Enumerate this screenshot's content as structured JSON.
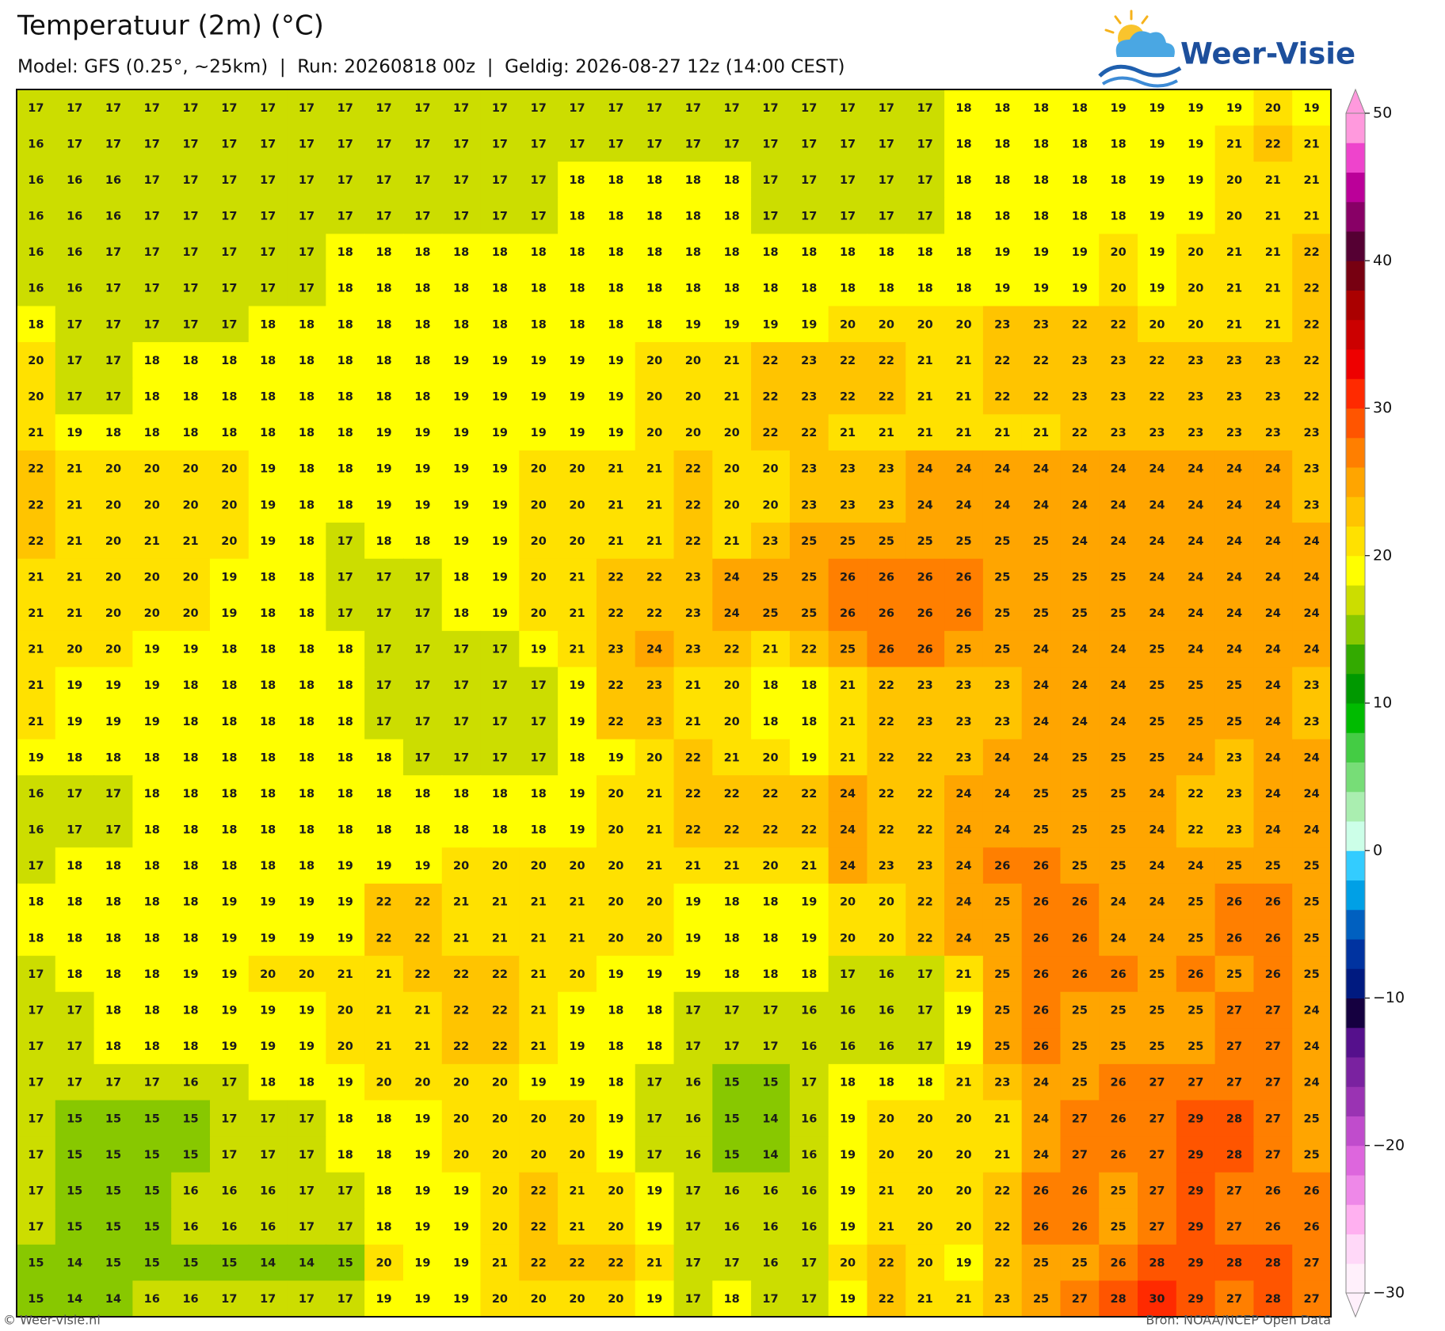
{
  "header": {
    "title": "Temperatuur (2m) (°C)",
    "subtitle": "Model: GFS (0.25°, ~25km)  |  Run: 20260818 00z  |  Geldig: 2026-08-27 12z (14:00 CEST)"
  },
  "logo": {
    "text": "Weer-Visie"
  },
  "grid": {
    "rows": [
      [
        17,
        17,
        17,
        17,
        17,
        17,
        17,
        17,
        17,
        17,
        17,
        17,
        17,
        17,
        17,
        17,
        17,
        17,
        17,
        17,
        17,
        17,
        17,
        17,
        18,
        18,
        18,
        18,
        19,
        19,
        19,
        19,
        20,
        19
      ],
      [
        16,
        17,
        17,
        17,
        17,
        17,
        17,
        17,
        17,
        17,
        17,
        17,
        17,
        17,
        17,
        17,
        17,
        17,
        17,
        17,
        17,
        17,
        17,
        17,
        18,
        18,
        18,
        18,
        18,
        19,
        19,
        21,
        22,
        21
      ],
      [
        16,
        16,
        16,
        17,
        17,
        17,
        17,
        17,
        17,
        17,
        17,
        17,
        17,
        17,
        18,
        18,
        18,
        18,
        18,
        17,
        17,
        17,
        17,
        17,
        18,
        18,
        18,
        18,
        18,
        19,
        19,
        20,
        21,
        21
      ],
      [
        16,
        16,
        16,
        17,
        17,
        17,
        17,
        17,
        17,
        17,
        17,
        17,
        17,
        17,
        18,
        18,
        18,
        18,
        18,
        17,
        17,
        17,
        17,
        17,
        18,
        18,
        18,
        18,
        18,
        19,
        19,
        20,
        21,
        21
      ],
      [
        16,
        16,
        17,
        17,
        17,
        17,
        17,
        17,
        18,
        18,
        18,
        18,
        18,
        18,
        18,
        18,
        18,
        18,
        18,
        18,
        18,
        18,
        18,
        18,
        18,
        19,
        19,
        19,
        20,
        19,
        20,
        21,
        21,
        22
      ],
      [
        16,
        16,
        17,
        17,
        17,
        17,
        17,
        17,
        18,
        18,
        18,
        18,
        18,
        18,
        18,
        18,
        18,
        18,
        18,
        18,
        18,
        18,
        18,
        18,
        18,
        19,
        19,
        19,
        20,
        19,
        20,
        21,
        21,
        22
      ],
      [
        18,
        17,
        17,
        17,
        17,
        17,
        18,
        18,
        18,
        18,
        18,
        18,
        18,
        18,
        18,
        18,
        18,
        19,
        19,
        19,
        19,
        20,
        20,
        20,
        20,
        23,
        23,
        22,
        22,
        20,
        20,
        21,
        21,
        22
      ],
      [
        20,
        17,
        17,
        18,
        18,
        18,
        18,
        18,
        18,
        18,
        18,
        19,
        19,
        19,
        19,
        19,
        20,
        20,
        21,
        22,
        23,
        22,
        22,
        21,
        21,
        22,
        22,
        23,
        23,
        22,
        23,
        23,
        23,
        22
      ],
      [
        20,
        17,
        17,
        18,
        18,
        18,
        18,
        18,
        18,
        18,
        18,
        19,
        19,
        19,
        19,
        19,
        20,
        20,
        21,
        22,
        23,
        22,
        22,
        21,
        21,
        22,
        22,
        23,
        23,
        22,
        23,
        23,
        23,
        22
      ],
      [
        21,
        19,
        18,
        18,
        18,
        18,
        18,
        18,
        18,
        19,
        19,
        19,
        19,
        19,
        19,
        19,
        20,
        20,
        20,
        22,
        22,
        21,
        21,
        21,
        21,
        21,
        21,
        22,
        23,
        23,
        23,
        23,
        23,
        23
      ],
      [
        22,
        21,
        20,
        20,
        20,
        20,
        19,
        18,
        18,
        19,
        19,
        19,
        19,
        20,
        20,
        21,
        21,
        22,
        20,
        20,
        23,
        23,
        23,
        24,
        24,
        24,
        24,
        24,
        24,
        24,
        24,
        24,
        24,
        23
      ],
      [
        22,
        21,
        20,
        20,
        20,
        20,
        19,
        18,
        18,
        19,
        19,
        19,
        19,
        20,
        20,
        21,
        21,
        22,
        20,
        20,
        23,
        23,
        23,
        24,
        24,
        24,
        24,
        24,
        24,
        24,
        24,
        24,
        24,
        23
      ],
      [
        22,
        21,
        20,
        21,
        21,
        20,
        19,
        18,
        17,
        18,
        18,
        19,
        19,
        20,
        20,
        21,
        21,
        22,
        21,
        23,
        25,
        25,
        25,
        25,
        25,
        25,
        25,
        24,
        24,
        24,
        24,
        24,
        24,
        24
      ],
      [
        21,
        21,
        20,
        20,
        20,
        19,
        18,
        18,
        17,
        17,
        17,
        18,
        19,
        20,
        21,
        22,
        22,
        23,
        24,
        25,
        25,
        26,
        26,
        26,
        26,
        25,
        25,
        25,
        25,
        24,
        24,
        24,
        24,
        24
      ],
      [
        21,
        21,
        20,
        20,
        20,
        19,
        18,
        18,
        17,
        17,
        17,
        18,
        19,
        20,
        21,
        22,
        22,
        23,
        24,
        25,
        25,
        26,
        26,
        26,
        26,
        25,
        25,
        25,
        25,
        24,
        24,
        24,
        24,
        24
      ],
      [
        21,
        20,
        20,
        19,
        19,
        18,
        18,
        18,
        18,
        17,
        17,
        17,
        17,
        19,
        21,
        23,
        24,
        23,
        22,
        21,
        22,
        25,
        26,
        26,
        25,
        25,
        24,
        24,
        24,
        25,
        24,
        24,
        24,
        24
      ],
      [
        21,
        19,
        19,
        19,
        18,
        18,
        18,
        18,
        18,
        17,
        17,
        17,
        17,
        17,
        19,
        22,
        23,
        21,
        20,
        18,
        18,
        21,
        22,
        23,
        23,
        23,
        24,
        24,
        24,
        25,
        25,
        25,
        24,
        23
      ],
      [
        21,
        19,
        19,
        19,
        18,
        18,
        18,
        18,
        18,
        17,
        17,
        17,
        17,
        17,
        19,
        22,
        23,
        21,
        20,
        18,
        18,
        21,
        22,
        23,
        23,
        23,
        24,
        24,
        24,
        25,
        25,
        25,
        24,
        23
      ],
      [
        19,
        18,
        18,
        18,
        18,
        18,
        18,
        18,
        18,
        18,
        17,
        17,
        17,
        17,
        18,
        19,
        20,
        22,
        21,
        20,
        19,
        21,
        22,
        22,
        23,
        24,
        24,
        25,
        25,
        25,
        24,
        23,
        24,
        24
      ],
      [
        16,
        17,
        17,
        18,
        18,
        18,
        18,
        18,
        18,
        18,
        18,
        18,
        18,
        18,
        19,
        20,
        21,
        22,
        22,
        22,
        22,
        24,
        22,
        22,
        24,
        24,
        25,
        25,
        25,
        24,
        22,
        23,
        24,
        24
      ],
      [
        16,
        17,
        17,
        18,
        18,
        18,
        18,
        18,
        18,
        18,
        18,
        18,
        18,
        18,
        19,
        20,
        21,
        22,
        22,
        22,
        22,
        24,
        22,
        22,
        24,
        24,
        25,
        25,
        25,
        24,
        22,
        23,
        24,
        24
      ],
      [
        17,
        18,
        18,
        18,
        18,
        18,
        18,
        18,
        19,
        19,
        19,
        20,
        20,
        20,
        20,
        20,
        21,
        21,
        21,
        20,
        21,
        24,
        23,
        23,
        24,
        26,
        26,
        25,
        25,
        24,
        24,
        25,
        25,
        25
      ],
      [
        18,
        18,
        18,
        18,
        18,
        19,
        19,
        19,
        19,
        22,
        22,
        21,
        21,
        21,
        21,
        20,
        20,
        19,
        18,
        18,
        19,
        20,
        20,
        22,
        24,
        25,
        26,
        26,
        24,
        24,
        25,
        26,
        26,
        25
      ],
      [
        18,
        18,
        18,
        18,
        18,
        19,
        19,
        19,
        19,
        22,
        22,
        21,
        21,
        21,
        21,
        20,
        20,
        19,
        18,
        18,
        19,
        20,
        20,
        22,
        24,
        25,
        26,
        26,
        24,
        24,
        25,
        26,
        26,
        25
      ],
      [
        17,
        18,
        18,
        18,
        19,
        19,
        20,
        20,
        21,
        21,
        22,
        22,
        22,
        21,
        20,
        19,
        19,
        19,
        18,
        18,
        18,
        17,
        16,
        17,
        21,
        25,
        26,
        26,
        26,
        25,
        26,
        25,
        26,
        25
      ],
      [
        17,
        17,
        18,
        18,
        18,
        19,
        19,
        19,
        20,
        21,
        21,
        22,
        22,
        21,
        19,
        18,
        18,
        17,
        17,
        17,
        16,
        16,
        16,
        17,
        19,
        25,
        26,
        25,
        25,
        25,
        25,
        27,
        27,
        24
      ],
      [
        17,
        17,
        18,
        18,
        18,
        19,
        19,
        19,
        20,
        21,
        21,
        22,
        22,
        21,
        19,
        18,
        18,
        17,
        17,
        17,
        16,
        16,
        16,
        17,
        19,
        25,
        26,
        25,
        25,
        25,
        25,
        27,
        27,
        24
      ],
      [
        17,
        17,
        17,
        17,
        16,
        17,
        18,
        18,
        19,
        20,
        20,
        20,
        20,
        19,
        19,
        18,
        17,
        16,
        15,
        15,
        17,
        18,
        18,
        18,
        21,
        23,
        24,
        25,
        26,
        27,
        27,
        27,
        27,
        24
      ],
      [
        17,
        15,
        15,
        15,
        15,
        17,
        17,
        17,
        18,
        18,
        19,
        20,
        20,
        20,
        20,
        19,
        17,
        16,
        15,
        14,
        16,
        19,
        20,
        20,
        20,
        21,
        24,
        27,
        26,
        27,
        29,
        28,
        27,
        25
      ],
      [
        17,
        15,
        15,
        15,
        15,
        17,
        17,
        17,
        18,
        18,
        19,
        20,
        20,
        20,
        20,
        19,
        17,
        16,
        15,
        14,
        16,
        19,
        20,
        20,
        20,
        21,
        24,
        27,
        26,
        27,
        29,
        28,
        27,
        25
      ],
      [
        17,
        15,
        15,
        15,
        16,
        16,
        16,
        17,
        17,
        18,
        19,
        19,
        20,
        22,
        21,
        20,
        19,
        17,
        16,
        16,
        16,
        19,
        21,
        20,
        20,
        22,
        26,
        26,
        25,
        27,
        29,
        27,
        26,
        26
      ],
      [
        17,
        15,
        15,
        15,
        16,
        16,
        16,
        17,
        17,
        18,
        19,
        19,
        20,
        22,
        21,
        20,
        19,
        17,
        16,
        16,
        16,
        19,
        21,
        20,
        20,
        22,
        26,
        26,
        25,
        27,
        29,
        27,
        26,
        26
      ],
      [
        15,
        14,
        15,
        15,
        15,
        15,
        14,
        14,
        15,
        20,
        19,
        19,
        21,
        22,
        22,
        22,
        21,
        17,
        17,
        16,
        17,
        20,
        22,
        20,
        19,
        22,
        25,
        25,
        26,
        28,
        29,
        28,
        28,
        27
      ],
      [
        15,
        14,
        14,
        16,
        16,
        17,
        17,
        17,
        17,
        19,
        19,
        19,
        20,
        20,
        20,
        20,
        19,
        17,
        18,
        17,
        17,
        19,
        22,
        21,
        21,
        23,
        25,
        27,
        28,
        30,
        29,
        27,
        28,
        27
      ]
    ]
  },
  "colorbar": {
    "lim": [
      -30,
      50
    ],
    "ticks": [
      50,
      40,
      30,
      20,
      10,
      0,
      {
        "value": -10,
        "label": "−10"
      },
      {
        "value": -20,
        "label": "−20"
      },
      {
        "value": -30,
        "label": "−30"
      }
    ],
    "colors": [
      "#fff0fb",
      "#ffd8f8",
      "#ffb0f0",
      "#ee88e8",
      "#dd66dd",
      "#c04ccc",
      "#9a33b3",
      "#7a22a0",
      "#55108c",
      "#150040",
      "#001a80",
      "#0033a0",
      "#0060c0",
      "#00a0e6",
      "#33ccff",
      "#ccffe8",
      "#aaeeb0",
      "#77dd77",
      "#44cc44",
      "#00bb00",
      "#009900",
      "#33aa00",
      "#88c800",
      "#ccdd00",
      "#ffff00",
      "#ffe100",
      "#ffc400",
      "#ffa500",
      "#ff7f00",
      "#ff5500",
      "#ff2a00",
      "#ee0000",
      "#cc0000",
      "#aa0000",
      "#770011",
      "#550033",
      "#880066",
      "#bb0099",
      "#ee44cc",
      "#ff99dd"
    ]
  },
  "footer": {
    "left": "© Weer-visie.nl",
    "right": "Bron: NOAA/NCEP Open Data"
  }
}
